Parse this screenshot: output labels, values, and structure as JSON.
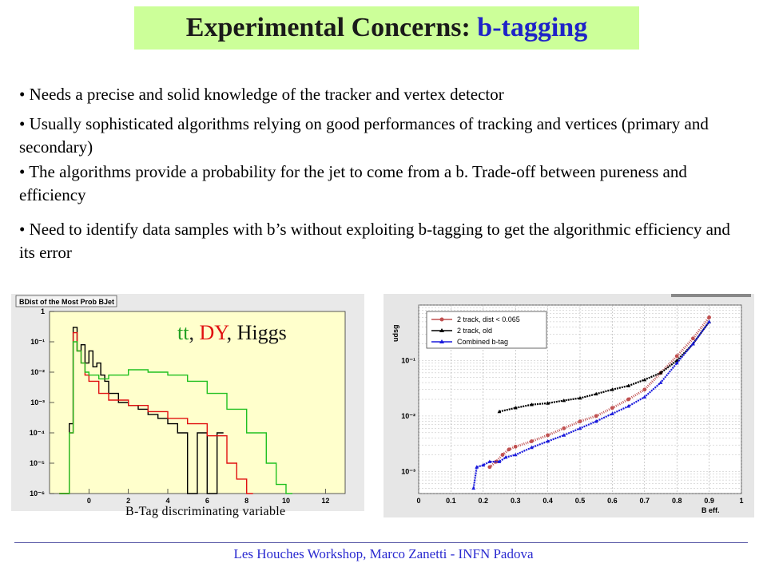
{
  "slide": {
    "title_prefix": "Experimental Concerns: ",
    "title_accent": "b-tagging",
    "bullets": [
      "• Needs a precise and solid knowledge of the tracker and vertex detector",
      "• Usually sophisticated algorithms relying on good performances of tracking and vertices (primary and secondary)",
      "• The algorithms provide a probability for the jet to come from a b. Trade-off between pureness and efficiency",
      "• Need to identify data samples with b’s without exploiting b-tagging to get the algorithmic efficiency and its error"
    ],
    "caption": "B-Tag discriminating variable",
    "footer": "Les Houches Workshop,    Marco Zanetti -  INFN Padova",
    "colors": {
      "title_bg": "#ccff99",
      "accent": "#1f23c8",
      "footer": "#2a2ad0"
    }
  },
  "chart_data": [
    {
      "type": "line",
      "title": "BDist of the Most Prob BJet",
      "legend_labels": {
        "tt": "tt",
        "dy": "DY",
        "higgs": "Higgs",
        "sep1": ", ",
        "sep2": ", "
      },
      "xlim": [
        -2,
        13
      ],
      "ylim_log": [
        1e-06,
        1
      ],
      "x_ticks": [
        "0",
        "2",
        "4",
        "6",
        "8",
        "10",
        "12"
      ],
      "x_tick_values": [
        0,
        2,
        4,
        6,
        8,
        10,
        12
      ],
      "y_ticks": [
        "1",
        "10⁻¹",
        "10⁻²",
        "10⁻³",
        "10⁻⁴",
        "10⁻⁵",
        "10⁻⁶"
      ],
      "y_tick_values": [
        1,
        0.1,
        0.01,
        0.001,
        0.0001,
        1e-05,
        1e-06
      ],
      "series": [
        {
          "name": "tt",
          "color": "#000000",
          "x": [
            -1.5,
            -1.0,
            -0.8,
            -0.6,
            -0.4,
            -0.2,
            0,
            0.2,
            0.4,
            0.6,
            0.8,
            1.0,
            1.5,
            2.0,
            2.5,
            3.0,
            3.5,
            4.0,
            4.5,
            5.0,
            5.5,
            6.0,
            6.5
          ],
          "y": [
            1e-06,
            0.0002,
            0.3,
            0.05,
            0.08,
            0.02,
            0.05,
            0.015,
            0.02,
            0.008,
            0.005,
            0.002,
            0.001,
            0.0008,
            0.0006,
            0.0004,
            0.0003,
            0.0002,
            0.0001,
            1e-06,
            0.0001,
            1e-06,
            0.0001
          ]
        },
        {
          "name": "DY",
          "color": "#e01010",
          "x": [
            -1.5,
            -1.0,
            -0.8,
            -0.6,
            -0.4,
            -0.2,
            0,
            0.5,
            1.0,
            2.0,
            3.0,
            4.0,
            5.0,
            6.0,
            7.0,
            7.5,
            8.0
          ],
          "y": [
            1e-06,
            0.0001,
            0.2,
            0.05,
            0.02,
            0.008,
            0.005,
            0.002,
            0.0012,
            0.0008,
            0.0005,
            0.0003,
            0.0002,
            8e-05,
            1e-05,
            3e-06,
            1e-06
          ]
        },
        {
          "name": "Higgs",
          "color": "#20c020",
          "x": [
            -1.5,
            -1.0,
            -0.8,
            -0.6,
            -0.4,
            -0.2,
            0,
            0.5,
            1.0,
            2.0,
            3.0,
            4.0,
            5.0,
            6.0,
            7.0,
            8.0,
            9.0,
            9.5,
            10.0
          ],
          "y": [
            1e-06,
            0.0001,
            0.1,
            0.05,
            0.02,
            0.01,
            0.008,
            0.006,
            0.008,
            0.012,
            0.01,
            0.008,
            0.005,
            0.002,
            0.0006,
            0.0001,
            1e-05,
            2e-06,
            1e-06
          ]
        }
      ]
    },
    {
      "type": "scatter",
      "xlabel": "B eff.",
      "ylabel": "udsg",
      "xlim": [
        0,
        1
      ],
      "ylim_log": [
        0.0004,
        1
      ],
      "x_ticks": [
        "0",
        "0.1",
        "0.2",
        "0.3",
        "0.4",
        "0.5",
        "0.6",
        "0.7",
        "0.8",
        "0.9",
        "1"
      ],
      "x_tick_values": [
        0,
        0.1,
        0.2,
        0.3,
        0.4,
        0.5,
        0.6,
        0.7,
        0.8,
        0.9,
        1.0
      ],
      "y_ticks": [
        "10⁻¹",
        "10⁻²",
        "10⁻³"
      ],
      "y_tick_values": [
        0.1,
        0.01,
        0.001
      ],
      "grid": true,
      "legend_position": "top-left",
      "series": [
        {
          "name": "2 track, dist < 0.065",
          "color": "#c05050",
          "x": [
            0.22,
            0.24,
            0.26,
            0.28,
            0.3,
            0.35,
            0.4,
            0.45,
            0.5,
            0.55,
            0.6,
            0.65,
            0.7,
            0.75,
            0.8,
            0.85,
            0.9
          ],
          "y": [
            0.0012,
            0.0015,
            0.002,
            0.0025,
            0.0028,
            0.0035,
            0.0045,
            0.006,
            0.008,
            0.01,
            0.014,
            0.02,
            0.03,
            0.06,
            0.12,
            0.25,
            0.6
          ]
        },
        {
          "name": "2 track, old",
          "color": "#000000",
          "x": [
            0.25,
            0.3,
            0.35,
            0.4,
            0.45,
            0.5,
            0.55,
            0.6,
            0.65,
            0.7,
            0.75,
            0.8,
            0.85,
            0.9
          ],
          "y": [
            0.012,
            0.014,
            0.016,
            0.017,
            0.019,
            0.021,
            0.025,
            0.03,
            0.035,
            0.045,
            0.06,
            0.1,
            0.2,
            0.5
          ]
        },
        {
          "name": "Combined b-tag",
          "color": "#1a1adc",
          "x": [
            0.17,
            0.18,
            0.2,
            0.22,
            0.25,
            0.27,
            0.3,
            0.35,
            0.4,
            0.45,
            0.5,
            0.55,
            0.6,
            0.65,
            0.7,
            0.75,
            0.8,
            0.85,
            0.9
          ],
          "y": [
            0.0005,
            0.0012,
            0.0013,
            0.0015,
            0.0015,
            0.0018,
            0.002,
            0.0027,
            0.0035,
            0.0045,
            0.006,
            0.008,
            0.011,
            0.015,
            0.022,
            0.04,
            0.09,
            0.2,
            0.5
          ]
        }
      ]
    }
  ]
}
